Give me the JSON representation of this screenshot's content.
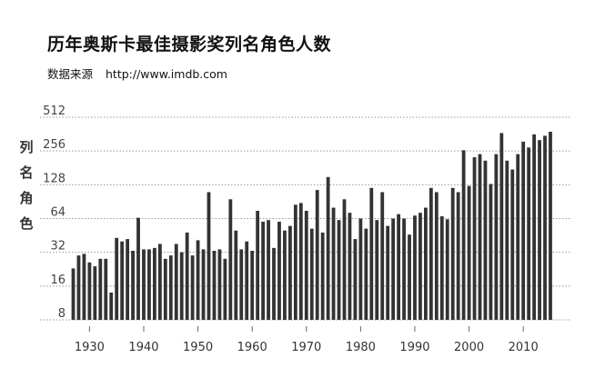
{
  "title": "历年奥斯卡最佳摄影奖列名角色人数",
  "source": {
    "label": "数据来源",
    "url": "http://www.imdb.com"
  },
  "chart_data": {
    "type": "bar",
    "title": "历年奥斯卡最佳摄影奖列名角色人数",
    "xlabel": "",
    "ylabel": [
      "列",
      "名",
      "角",
      "色"
    ],
    "yscale": "log2",
    "ylim": [
      8,
      512
    ],
    "yticks": [
      8,
      16,
      32,
      64,
      128,
      256,
      512
    ],
    "xticks": [
      1930,
      1940,
      1950,
      1960,
      1970,
      1980,
      1990,
      2000,
      2010
    ],
    "grid": "dotted-horizontal",
    "bar_color": "#333333",
    "years": [
      1927,
      1928,
      1929,
      1930,
      1931,
      1932,
      1933,
      1934,
      1935,
      1936,
      1937,
      1938,
      1939,
      1940,
      1941,
      1942,
      1943,
      1944,
      1945,
      1946,
      1947,
      1948,
      1949,
      1950,
      1951,
      1952,
      1953,
      1954,
      1955,
      1956,
      1957,
      1958,
      1959,
      1960,
      1961,
      1962,
      1963,
      1964,
      1965,
      1966,
      1967,
      1968,
      1969,
      1970,
      1971,
      1972,
      1973,
      1974,
      1975,
      1976,
      1977,
      1978,
      1979,
      1980,
      1981,
      1982,
      1983,
      1984,
      1985,
      1986,
      1987,
      1988,
      1989,
      1990,
      1991,
      1992,
      1993,
      1994,
      1995,
      1996,
      1997,
      1998,
      1999,
      2000,
      2001,
      2002,
      2003,
      2004,
      2005,
      2006,
      2007,
      2008,
      2009,
      2010,
      2011,
      2012,
      2013,
      2014,
      2015
    ],
    "values": [
      23,
      30,
      31,
      26,
      24,
      28,
      28,
      14,
      43,
      40,
      42,
      33,
      65,
      34,
      34,
      35,
      38,
      28,
      30,
      38,
      32,
      48,
      30,
      41,
      34,
      110,
      33,
      34,
      28,
      95,
      50,
      34,
      40,
      33,
      75,
      60,
      62,
      35,
      60,
      50,
      55,
      85,
      88,
      75,
      52,
      115,
      48,
      150,
      80,
      62,
      95,
      72,
      42,
      64,
      52,
      120,
      62,
      110,
      55,
      64,
      70,
      64,
      46,
      68,
      72,
      80,
      120,
      110,
      67,
      63,
      120,
      110,
      260,
      125,
      225,
      240,
      210,
      130,
      240,
      370,
      210,
      175,
      240,
      310,
      275,
      360,
      320,
      350,
      380
    ]
  }
}
